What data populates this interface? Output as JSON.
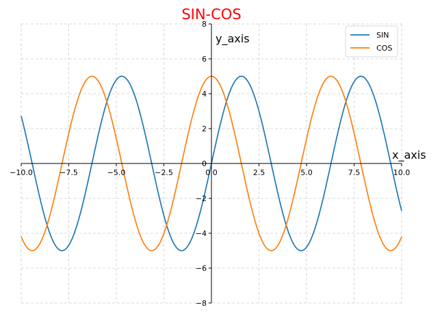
{
  "chart_data": {
    "type": "line",
    "title": "SIN-COS",
    "xlabel": "x_axis",
    "ylabel": "y_axis",
    "xlim": [
      -10,
      10
    ],
    "ylim": [
      -8,
      8
    ],
    "x_ticks": [
      "−10.0",
      "−7.5",
      "−5.0",
      "−2.5",
      "0.0",
      "2.5",
      "5.0",
      "7.5",
      "10.0"
    ],
    "y_ticks": [
      "−8",
      "−6",
      "−4",
      "−2",
      "0",
      "2",
      "4",
      "6",
      "8"
    ],
    "grid": true,
    "legend_position": "top-right",
    "series": [
      {
        "name": "SIN",
        "function": "5*sin(x)",
        "color": "#1f77b4"
      },
      {
        "name": "COS",
        "function": "5*cos(x)",
        "color": "#ff7f0e"
      }
    ],
    "title_color": "#ff0000"
  }
}
